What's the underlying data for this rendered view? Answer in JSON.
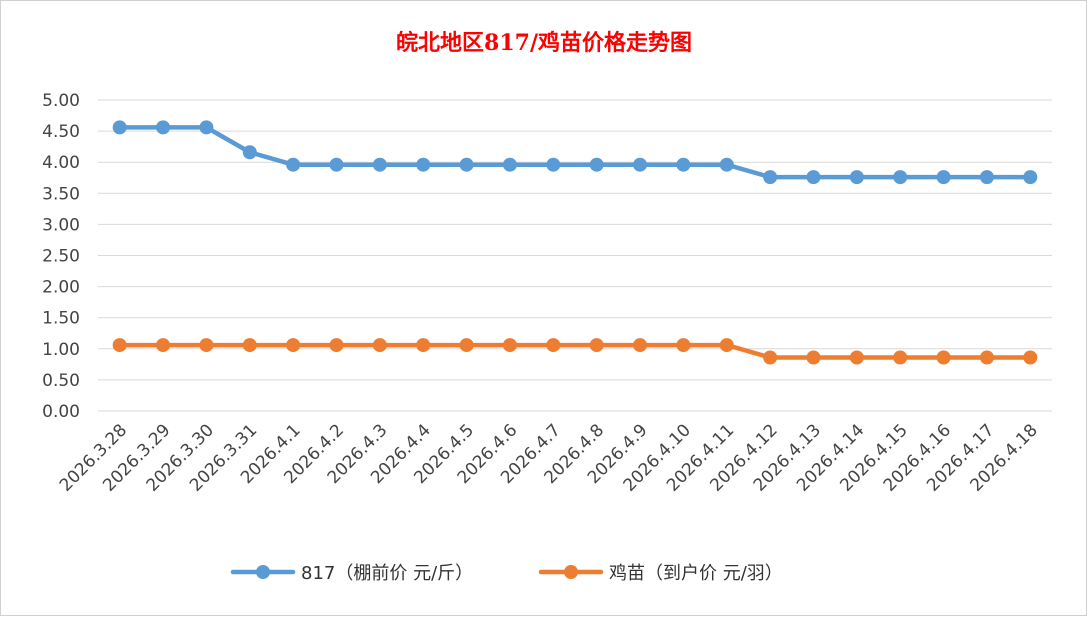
{
  "chart_data": {
    "type": "line",
    "title": "皖北地区817/鸡苗价格走势图",
    "categories": [
      "2026.3.28",
      "2026.3.29",
      "2026.3.30",
      "2026.3.31",
      "2026.4.1",
      "2026.4.2",
      "2026.4.3",
      "2026.4.4",
      "2026.4.5",
      "2026.4.6",
      "2026.4.7",
      "2026.4.8",
      "2026.4.9",
      "2026.4.10",
      "2026.4.11",
      "2026.4.12",
      "2026.4.13",
      "2026.4.14",
      "2026.4.15",
      "2026.4.16",
      "2026.4.17",
      "2026.4.18"
    ],
    "ylim": [
      0,
      5
    ],
    "yticks": [
      "0.00",
      "0.50",
      "1.00",
      "1.50",
      "2.00",
      "2.50",
      "3.00",
      "3.50",
      "4.00",
      "4.50",
      "5.00"
    ],
    "grid": true,
    "legend_position": "bottom",
    "series": [
      {
        "name": "817（棚前价 元/斤）",
        "color": "#5b9bd5",
        "values": [
          4.56,
          4.56,
          4.56,
          4.16,
          3.96,
          3.96,
          3.96,
          3.96,
          3.96,
          3.96,
          3.96,
          3.96,
          3.96,
          3.96,
          3.96,
          3.76,
          3.76,
          3.76,
          3.76,
          3.76,
          3.76,
          3.76
        ]
      },
      {
        "name": "鸡苗（到户价 元/羽）",
        "color": "#ed7d31",
        "values": [
          1.06,
          1.06,
          1.06,
          1.06,
          1.06,
          1.06,
          1.06,
          1.06,
          1.06,
          1.06,
          1.06,
          1.06,
          1.06,
          1.06,
          1.06,
          0.86,
          0.86,
          0.86,
          0.86,
          0.86,
          0.86,
          0.86
        ]
      }
    ]
  }
}
